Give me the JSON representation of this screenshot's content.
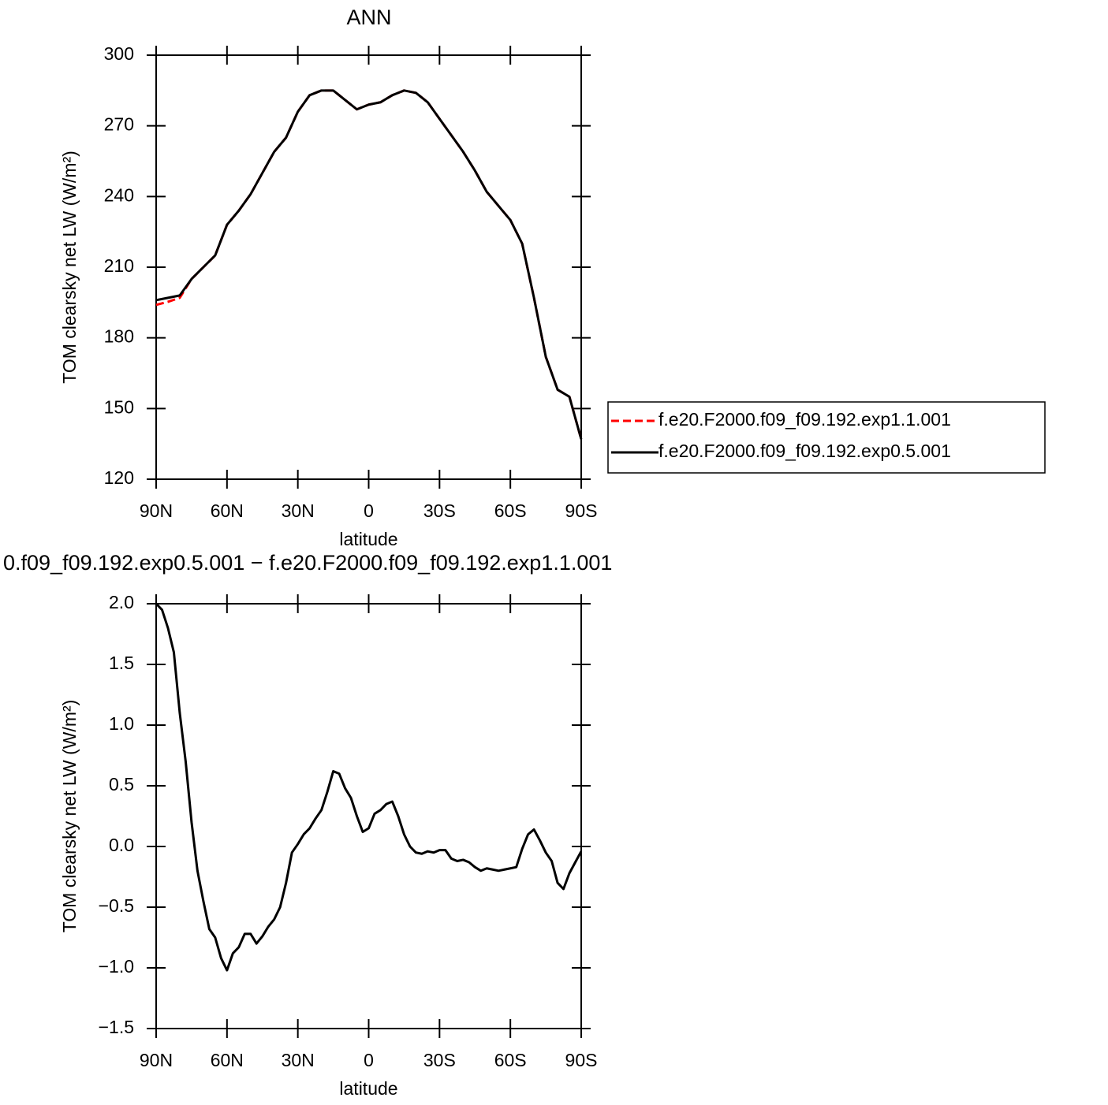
{
  "chart_data": [
    {
      "type": "line",
      "title": "ANN",
      "xlabel": "latitude",
      "ylabel": "TOM clearsky net LW (W/m²)",
      "x": [
        90,
        85,
        80,
        75,
        70,
        65,
        60,
        55,
        50,
        45,
        40,
        35,
        30,
        25,
        20,
        15,
        10,
        5,
        0,
        -5,
        -10,
        -15,
        -20,
        -25,
        -30,
        -35,
        -40,
        -45,
        -50,
        -55,
        -60,
        -65,
        -70,
        -75,
        -80,
        -85,
        -90
      ],
      "series": [
        {
          "name": "f.e20.F2000.f09_f09.192.exp1.1.001",
          "color": "#ff0000",
          "linestyle": "dashed",
          "values": [
            194,
            195.3,
            197,
            205,
            210,
            215,
            228,
            234,
            241,
            250,
            259,
            265,
            276,
            283,
            285,
            285,
            281,
            277,
            279,
            280,
            283,
            285,
            284,
            280,
            273,
            266,
            259,
            251,
            242,
            236,
            230,
            220,
            197,
            172,
            158,
            155,
            137
          ]
        },
        {
          "name": "f.e20.F2000.f09_f09.192.exp0.5.001",
          "color": "#000000",
          "linestyle": "solid",
          "values": [
            196,
            197,
            198,
            205,
            210,
            215,
            228,
            234,
            241,
            250,
            259,
            265,
            276,
            283,
            285,
            285,
            281,
            277,
            279,
            280,
            283,
            285,
            284,
            280,
            273,
            266,
            259,
            251,
            242,
            236,
            230,
            220,
            197,
            172,
            158,
            155,
            137
          ]
        }
      ],
      "xlim": [
        90,
        -90
      ],
      "xticks": [
        {
          "value": 90,
          "label": "90N"
        },
        {
          "value": 60,
          "label": "60N"
        },
        {
          "value": 30,
          "label": "30N"
        },
        0,
        {
          "value": -30,
          "label": "30S"
        },
        {
          "value": -60,
          "label": "60S"
        },
        {
          "value": -90,
          "label": "90S"
        }
      ],
      "ylim": [
        120,
        300
      ],
      "yticks": [
        120,
        150,
        180,
        210,
        240,
        270,
        300
      ],
      "legend": "right"
    },
    {
      "type": "line",
      "title": "0.f09_f09.192.exp0.5.001 − f.e20.F2000.f09_f09.192.exp1.1.001",
      "xlabel": "latitude",
      "ylabel": "TOM clearsky net LW (W/m²)",
      "x": [
        90,
        87.5,
        85,
        82.5,
        80,
        77.5,
        75,
        72.5,
        70,
        67.5,
        65,
        62.5,
        60,
        57.5,
        55,
        52.5,
        50,
        47.5,
        45,
        42.5,
        40,
        37.5,
        35,
        32.5,
        30,
        27.5,
        25,
        22.5,
        20,
        17.5,
        15,
        12.5,
        10,
        7.5,
        5,
        2.5,
        0,
        -2.5,
        -5,
        -7.5,
        -10,
        -12.5,
        -15,
        -17.5,
        -20,
        -22.5,
        -25,
        -27.5,
        -30,
        -32.5,
        -35,
        -37.5,
        -40,
        -42.5,
        -45,
        -47.5,
        -50,
        -52.5,
        -55,
        -57.5,
        -60,
        -62.5,
        -65,
        -67.5,
        -70,
        -72.5,
        -75,
        -77.5,
        -80,
        -82.5,
        -85,
        -87.5,
        -90
      ],
      "series": [
        {
          "color": "#000000",
          "linestyle": "solid",
          "values": [
            2.0,
            1.95,
            1.8,
            1.6,
            1.1,
            0.7,
            0.2,
            -0.2,
            -0.45,
            -0.68,
            -0.75,
            -0.92,
            -1.02,
            -0.88,
            -0.83,
            -0.72,
            -0.72,
            -0.8,
            -0.74,
            -0.66,
            -0.6,
            -0.5,
            -0.3,
            -0.05,
            0.02,
            0.1,
            0.15,
            0.23,
            0.3,
            0.45,
            0.62,
            0.6,
            0.48,
            0.4,
            0.25,
            0.12,
            0.15,
            0.27,
            0.3,
            0.35,
            0.37,
            0.25,
            0.1,
            0.0,
            -0.05,
            -0.06,
            -0.04,
            -0.05,
            -0.03,
            -0.03,
            -0.1,
            -0.12,
            -0.11,
            -0.13,
            -0.17,
            -0.2,
            -0.18,
            -0.19,
            -0.2,
            -0.19,
            -0.18,
            -0.17,
            -0.02,
            0.1,
            0.14,
            0.05,
            -0.05,
            -0.12,
            -0.3,
            -0.35,
            -0.22,
            -0.13,
            -0.04
          ]
        }
      ],
      "xlim": [
        90,
        -90
      ],
      "xticks": [
        {
          "value": 90,
          "label": "90N"
        },
        {
          "value": 60,
          "label": "60N"
        },
        {
          "value": 30,
          "label": "30N"
        },
        0,
        {
          "value": -30,
          "label": "30S"
        },
        {
          "value": -60,
          "label": "60S"
        },
        {
          "value": -90,
          "label": "90S"
        }
      ],
      "ylim": [
        -1.5,
        2.0
      ],
      "yticks": [
        {
          "value": -1.5,
          "label": "−1.5"
        },
        {
          "value": -1.0,
          "label": "−1.0"
        },
        {
          "value": -0.5,
          "label": "−0.5"
        },
        {
          "value": 0,
          "label": "0.0"
        },
        {
          "value": 0.5,
          "label": "0.5"
        },
        {
          "value": 1.0,
          "label": "1.0"
        },
        {
          "value": 1.5,
          "label": "1.5"
        },
        {
          "value": 2.0,
          "label": "2.0"
        }
      ]
    }
  ]
}
